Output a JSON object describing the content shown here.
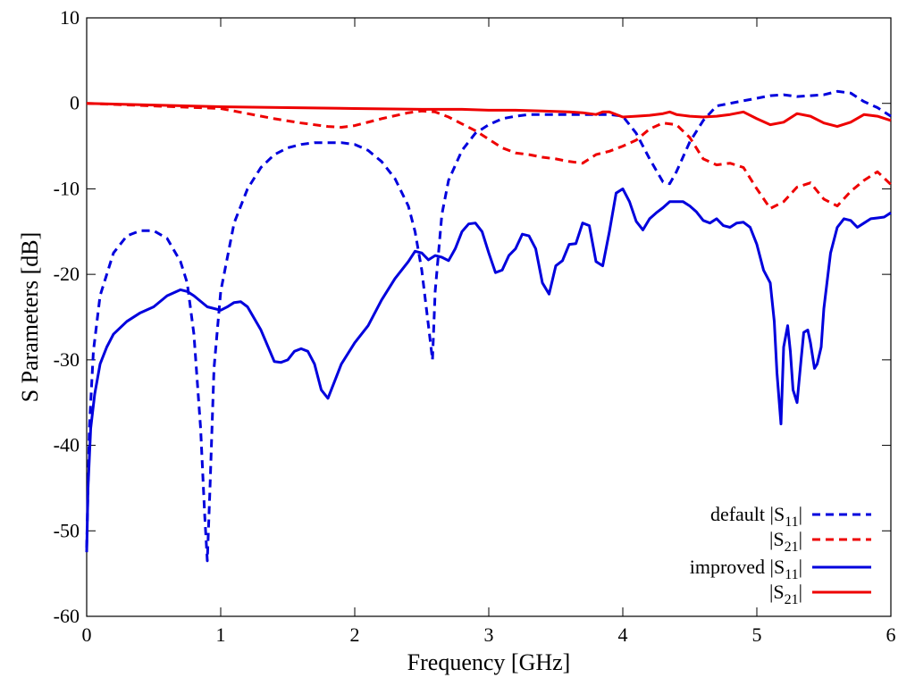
{
  "chart_data": {
    "type": "line",
    "title": "",
    "xlabel": "Frequency [GHz]",
    "ylabel": "S Parameters [dB]",
    "xlim": [
      0,
      6
    ],
    "ylim": [
      -60,
      10
    ],
    "xticks": [
      0,
      1,
      2,
      3,
      4,
      5,
      6
    ],
    "yticks": [
      -60,
      -50,
      -40,
      -30,
      -20,
      -10,
      0,
      10
    ],
    "grid": false,
    "legend_position": "bottom-right",
    "legend": [
      {
        "prefix": "default",
        "base": "|S",
        "sub": "11",
        "suffix": "|"
      },
      {
        "prefix": "",
        "base": "|S",
        "sub": "21",
        "suffix": "|"
      },
      {
        "prefix": "improved",
        "base": "|S",
        "sub": "11",
        "suffix": "|"
      },
      {
        "prefix": "",
        "base": "|S",
        "sub": "21",
        "suffix": "|"
      }
    ],
    "series": [
      {
        "color": "#0000dd",
        "dash": true,
        "x": [
          0,
          0.02,
          0.05,
          0.1,
          0.2,
          0.3,
          0.4,
          0.5,
          0.6,
          0.7,
          0.75,
          0.8,
          0.85,
          0.88,
          0.9,
          0.92,
          0.95,
          1.0,
          1.1,
          1.2,
          1.3,
          1.4,
          1.5,
          1.6,
          1.7,
          1.8,
          1.9,
          2.0,
          2.1,
          2.2,
          2.3,
          2.4,
          2.45,
          2.5,
          2.55,
          2.58,
          2.6,
          2.65,
          2.7,
          2.8,
          2.9,
          3.0,
          3.1,
          3.2,
          3.3,
          3.4,
          3.5,
          3.6,
          3.7,
          3.8,
          3.9,
          4.0,
          4.1,
          4.2,
          4.3,
          4.35,
          4.4,
          4.5,
          4.6,
          4.7,
          4.8,
          4.9,
          5.0,
          5.1,
          5.2,
          5.3,
          5.4,
          5.5,
          5.6,
          5.7,
          5.8,
          5.9,
          6.0
        ],
        "y": [
          -52,
          -38,
          -29,
          -22.5,
          -17.5,
          -15.5,
          -14.9,
          -14.9,
          -15.8,
          -18.5,
          -21,
          -27,
          -38,
          -48,
          -53.5,
          -45,
          -31,
          -22,
          -14,
          -10,
          -7.5,
          -6,
          -5.2,
          -4.8,
          -4.6,
          -4.6,
          -4.6,
          -4.8,
          -5.5,
          -6.8,
          -8.8,
          -12,
          -15,
          -19.5,
          -26,
          -30,
          -22,
          -13,
          -9,
          -5.5,
          -3.5,
          -2.5,
          -1.8,
          -1.5,
          -1.3,
          -1.3,
          -1.3,
          -1.3,
          -1.3,
          -1.3,
          -1.3,
          -1.5,
          -3.5,
          -6.5,
          -9.2,
          -9.4,
          -8,
          -4.5,
          -2,
          -0.3,
          0,
          0.3,
          0.6,
          0.9,
          1.0,
          0.8,
          0.9,
          1.0,
          1.4,
          1.2,
          0.2,
          -0.5,
          -1.5
        ]
      },
      {
        "color": "#ee0000",
        "dash": true,
        "x": [
          0,
          0.5,
          1.0,
          1.2,
          1.4,
          1.6,
          1.8,
          1.9,
          2.0,
          2.2,
          2.4,
          2.5,
          2.6,
          2.7,
          2.8,
          2.9,
          3.0,
          3.1,
          3.2,
          3.3,
          3.4,
          3.5,
          3.6,
          3.7,
          3.8,
          3.9,
          4.0,
          4.1,
          4.2,
          4.3,
          4.4,
          4.5,
          4.6,
          4.7,
          4.8,
          4.9,
          5.0,
          5.1,
          5.2,
          5.3,
          5.4,
          5.5,
          5.6,
          5.7,
          5.8,
          5.9,
          6.0
        ],
        "y": [
          0,
          -0.3,
          -0.6,
          -1.2,
          -1.8,
          -2.3,
          -2.7,
          -2.8,
          -2.6,
          -1.8,
          -1.1,
          -0.9,
          -1.0,
          -1.6,
          -2.4,
          -3.2,
          -4.2,
          -5.2,
          -5.8,
          -6.0,
          -6.3,
          -6.5,
          -6.8,
          -7.0,
          -6.0,
          -5.6,
          -5.0,
          -4.3,
          -3.0,
          -2.3,
          -2.5,
          -4.0,
          -6.5,
          -7.2,
          -7.0,
          -7.5,
          -10,
          -12.3,
          -11.5,
          -9.8,
          -9.3,
          -11.2,
          -12.0,
          -10.3,
          -9.0,
          -8.0,
          -9.5
        ]
      },
      {
        "color": "#0000dd",
        "dash": false,
        "x": [
          0,
          0.01,
          0.03,
          0.06,
          0.1,
          0.15,
          0.2,
          0.3,
          0.4,
          0.5,
          0.6,
          0.7,
          0.75,
          0.8,
          0.9,
          1.0,
          1.05,
          1.1,
          1.15,
          1.2,
          1.3,
          1.4,
          1.45,
          1.5,
          1.55,
          1.6,
          1.65,
          1.7,
          1.75,
          1.8,
          1.85,
          1.9,
          2.0,
          2.1,
          2.2,
          2.3,
          2.4,
          2.45,
          2.5,
          2.55,
          2.6,
          2.65,
          2.7,
          2.75,
          2.8,
          2.85,
          2.9,
          2.95,
          3.0,
          3.05,
          3.1,
          3.15,
          3.2,
          3.25,
          3.3,
          3.35,
          3.4,
          3.45,
          3.5,
          3.55,
          3.6,
          3.65,
          3.7,
          3.75,
          3.8,
          3.85,
          3.9,
          3.95,
          4.0,
          4.05,
          4.1,
          4.15,
          4.2,
          4.25,
          4.3,
          4.35,
          4.4,
          4.45,
          4.5,
          4.55,
          4.6,
          4.65,
          4.7,
          4.75,
          4.8,
          4.85,
          4.9,
          4.95,
          5.0,
          5.05,
          5.1,
          5.13,
          5.15,
          5.18,
          5.2,
          5.23,
          5.25,
          5.27,
          5.3,
          5.33,
          5.35,
          5.38,
          5.4,
          5.43,
          5.45,
          5.48,
          5.5,
          5.55,
          5.6,
          5.65,
          5.7,
          5.75,
          5.8,
          5.85,
          5.9,
          5.95,
          6.0
        ],
        "y": [
          -52.5,
          -45,
          -38,
          -34,
          -30.5,
          -28.5,
          -27,
          -25.5,
          -24.5,
          -23.8,
          -22.5,
          -21.8,
          -22.0,
          -22.5,
          -23.8,
          -24.2,
          -23.8,
          -23.3,
          -23.2,
          -23.8,
          -26.5,
          -30.2,
          -30.3,
          -30.0,
          -29,
          -28.7,
          -29,
          -30.5,
          -33.5,
          -34.5,
          -32.5,
          -30.5,
          -28,
          -26,
          -23,
          -20.5,
          -18.5,
          -17.3,
          -17.5,
          -18.3,
          -17.8,
          -18.0,
          -18.4,
          -17.0,
          -15.0,
          -14.1,
          -14.0,
          -15.0,
          -17.5,
          -19.8,
          -19.5,
          -17.8,
          -17.0,
          -15.3,
          -15.5,
          -17.0,
          -21.0,
          -22.3,
          -19.0,
          -18.4,
          -16.5,
          -16.4,
          -14.0,
          -14.3,
          -18.5,
          -19.0,
          -15.0,
          -10.5,
          -10.0,
          -11.5,
          -13.8,
          -14.8,
          -13.5,
          -12.8,
          -12.2,
          -11.5,
          -11.5,
          -11.5,
          -12.0,
          -12.7,
          -13.7,
          -14.0,
          -13.5,
          -14.3,
          -14.5,
          -14.0,
          -13.9,
          -14.5,
          -16.5,
          -19.5,
          -21.0,
          -25.5,
          -31.5,
          -37.5,
          -28.5,
          -26.0,
          -29.0,
          -33.5,
          -35.0,
          -30.0,
          -26.8,
          -26.5,
          -28.0,
          -31.0,
          -30.5,
          -28.5,
          -24.0,
          -17.5,
          -14.5,
          -13.5,
          -13.7,
          -14.5,
          -14.0,
          -13.5,
          -13.4,
          -13.3,
          -12.8
        ]
      },
      {
        "color": "#ee0000",
        "dash": false,
        "x": [
          0,
          0.5,
          1.0,
          1.5,
          2.0,
          2.5,
          2.8,
          3.0,
          3.2,
          3.4,
          3.6,
          3.7,
          3.8,
          3.85,
          3.9,
          4.0,
          4.1,
          4.2,
          4.3,
          4.35,
          4.4,
          4.5,
          4.6,
          4.7,
          4.8,
          4.9,
          5.0,
          5.1,
          5.2,
          5.3,
          5.4,
          5.5,
          5.6,
          5.7,
          5.8,
          5.9,
          6.0
        ],
        "y": [
          0,
          -0.2,
          -0.4,
          -0.5,
          -0.6,
          -0.7,
          -0.7,
          -0.8,
          -0.8,
          -0.9,
          -1.0,
          -1.1,
          -1.3,
          -1.0,
          -1.0,
          -1.6,
          -1.5,
          -1.4,
          -1.2,
          -1.0,
          -1.3,
          -1.5,
          -1.6,
          -1.5,
          -1.3,
          -1.0,
          -1.8,
          -2.5,
          -2.2,
          -1.2,
          -1.5,
          -2.3,
          -2.7,
          -2.2,
          -1.3,
          -1.5,
          -2.0
        ]
      }
    ]
  }
}
